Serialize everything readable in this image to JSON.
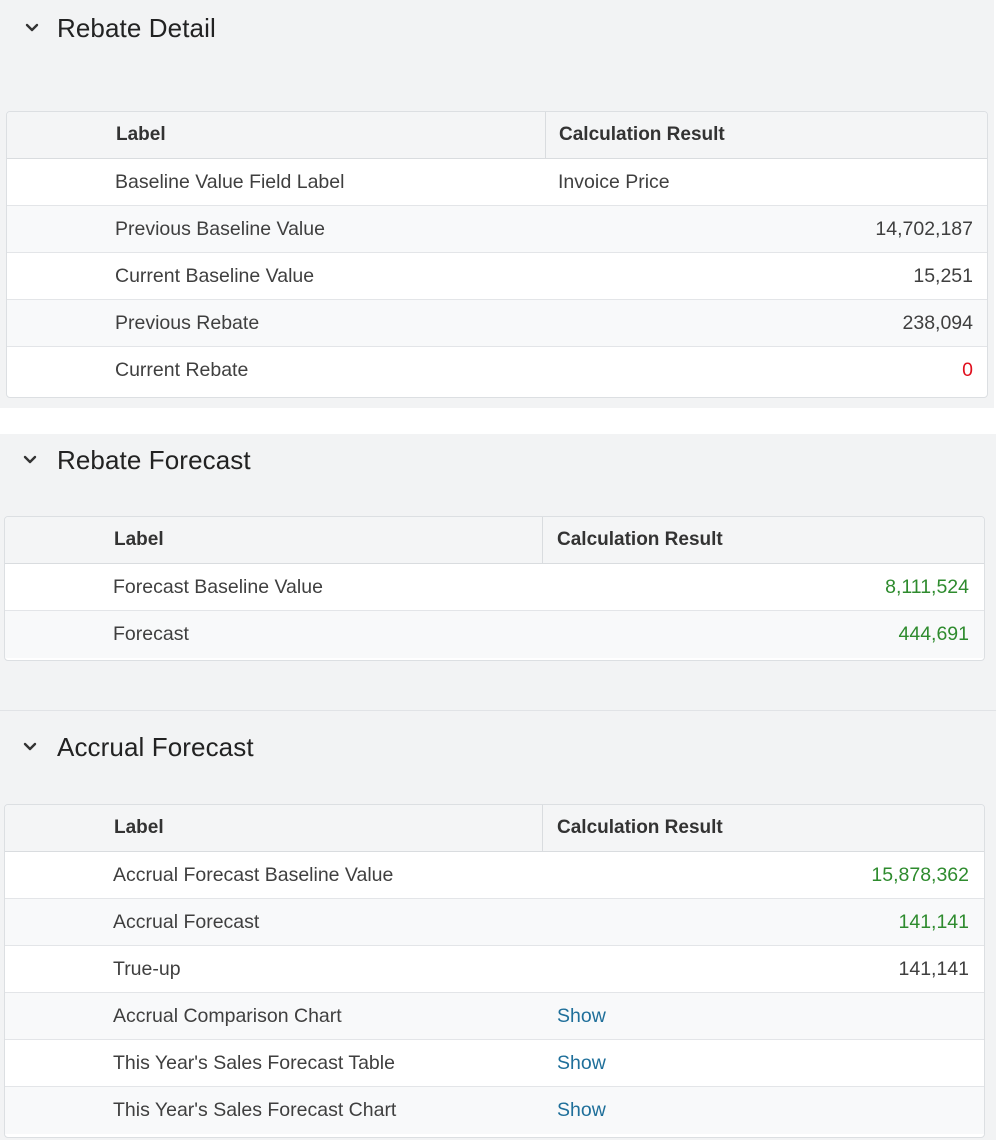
{
  "colors": {
    "positive": "#2e8b2e",
    "negative": "#e0101e",
    "link": "#1f6f9a"
  },
  "sections": {
    "rebate_detail": {
      "title": "Rebate Detail",
      "headers": {
        "label": "Label",
        "result": "Calculation Result"
      },
      "rows": [
        {
          "label": "Baseline Value Field Label",
          "value": "Invoice Price"
        },
        {
          "label": "Previous Baseline Value",
          "value": "14,702,187"
        },
        {
          "label": "Current Baseline Value",
          "value": "15,251"
        },
        {
          "label": "Previous Rebate",
          "value": "238,094"
        },
        {
          "label": "Current Rebate",
          "value": "0"
        }
      ]
    },
    "rebate_forecast": {
      "title": "Rebate Forecast",
      "headers": {
        "label": "Label",
        "result": "Calculation Result"
      },
      "rows": [
        {
          "label": "Forecast Baseline Value",
          "value": "8,111,524"
        },
        {
          "label": "Forecast",
          "value": "444,691"
        }
      ]
    },
    "accrual_forecast": {
      "title": "Accrual Forecast",
      "headers": {
        "label": "Label",
        "result": "Calculation Result"
      },
      "rows": [
        {
          "label": "Accrual Forecast Baseline Value",
          "value": "15,878,362"
        },
        {
          "label": "Accrual Forecast",
          "value": "141,141"
        },
        {
          "label": "True-up",
          "value": "141,141"
        },
        {
          "label": "Accrual Comparison Chart",
          "value": "Show"
        },
        {
          "label": "This Year's Sales Forecast Table",
          "value": "Show"
        },
        {
          "label": "This Year's Sales Forecast Chart",
          "value": "Show"
        }
      ]
    }
  }
}
